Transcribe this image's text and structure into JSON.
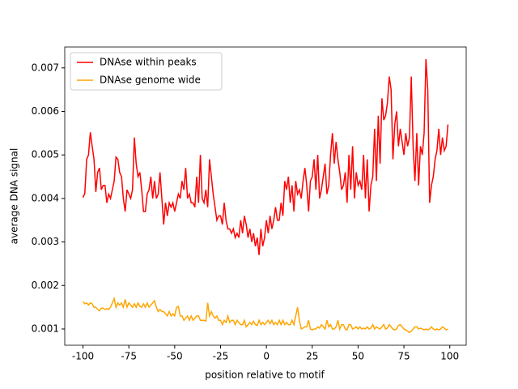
{
  "chart_data": {
    "type": "line",
    "xlabel": "position relative to motif",
    "ylabel": "average DNA signal",
    "legend": "upper left",
    "xlim": [
      -109.95,
      108.95
    ],
    "ylim": [
      0.000627,
      0.00748
    ],
    "xticks": [
      -100,
      -75,
      -50,
      -25,
      0,
      25,
      50,
      75,
      100
    ],
    "yticks": [
      0.001,
      0.002,
      0.003,
      0.004,
      0.005,
      0.006,
      0.007
    ],
    "x": [
      -100,
      -99,
      -98,
      -97,
      -96,
      -95,
      -94,
      -93,
      -92,
      -91,
      -90,
      -89,
      -88,
      -87,
      -86,
      -85,
      -84,
      -83,
      -82,
      -81,
      -80,
      -79,
      -78,
      -77,
      -76,
      -75,
      -74,
      -73,
      -72,
      -71,
      -70,
      -69,
      -68,
      -67,
      -66,
      -65,
      -64,
      -63,
      -62,
      -61,
      -60,
      -59,
      -58,
      -57,
      -56,
      -55,
      -54,
      -53,
      -52,
      -51,
      -50,
      -49,
      -48,
      -47,
      -46,
      -45,
      -44,
      -43,
      -42,
      -41,
      -40,
      -39,
      -38,
      -37,
      -36,
      -35,
      -34,
      -33,
      -32,
      -31,
      -30,
      -29,
      -28,
      -27,
      -26,
      -25,
      -24,
      -23,
      -22,
      -21,
      -20,
      -19,
      -18,
      -17,
      -16,
      -15,
      -14,
      -13,
      -12,
      -11,
      -10,
      -9,
      -8,
      -7,
      -6,
      -5,
      -4,
      -3,
      -2,
      -1,
      0,
      1,
      2,
      3,
      4,
      5,
      6,
      7,
      8,
      9,
      10,
      11,
      12,
      13,
      14,
      15,
      16,
      17,
      18,
      19,
      20,
      21,
      22,
      23,
      24,
      25,
      26,
      27,
      28,
      29,
      30,
      31,
      32,
      33,
      34,
      35,
      36,
      37,
      38,
      39,
      40,
      41,
      42,
      43,
      44,
      45,
      46,
      47,
      48,
      49,
      50,
      51,
      52,
      53,
      54,
      55,
      56,
      57,
      58,
      59,
      60,
      61,
      62,
      63,
      64,
      65,
      66,
      67,
      68,
      69,
      70,
      71,
      72,
      73,
      74,
      75,
      76,
      77,
      78,
      79,
      80,
      81,
      82,
      83,
      84,
      85,
      86,
      87,
      88,
      89,
      90,
      91,
      92,
      93,
      94,
      95,
      96,
      97,
      98,
      99
    ],
    "series": [
      {
        "name": "DNAse within peaks",
        "color": "#ff0000",
        "values": [
          0.00402,
          0.00412,
          0.0049,
          0.005,
          0.00552,
          0.0052,
          0.0049,
          0.00415,
          0.0046,
          0.0047,
          0.0042,
          0.0043,
          0.0043,
          0.0039,
          0.0041,
          0.004,
          0.0042,
          0.0044,
          0.00495,
          0.0049,
          0.0046,
          0.0045,
          0.004,
          0.0037,
          0.0042,
          0.0041,
          0.004,
          0.0042,
          0.0054,
          0.0048,
          0.0045,
          0.0046,
          0.0042,
          0.0037,
          0.0037,
          0.0041,
          0.0042,
          0.0045,
          0.004,
          0.0044,
          0.004,
          0.0041,
          0.0046,
          0.004,
          0.0034,
          0.0039,
          0.0036,
          0.0039,
          0.0038,
          0.0039,
          0.0037,
          0.0039,
          0.0041,
          0.004,
          0.0044,
          0.0042,
          0.0047,
          0.004,
          0.0041,
          0.0039,
          0.0039,
          0.0038,
          0.0045,
          0.0039,
          0.005,
          0.004,
          0.0039,
          0.0042,
          0.0038,
          0.0049,
          0.0045,
          0.0041,
          0.0038,
          0.0035,
          0.0036,
          0.0036,
          0.0034,
          0.0039,
          0.0035,
          0.0033,
          0.0033,
          0.0032,
          0.0033,
          0.0031,
          0.0032,
          0.0031,
          0.0035,
          0.0032,
          0.0036,
          0.0034,
          0.0031,
          0.0033,
          0.003,
          0.0032,
          0.0029,
          0.0031,
          0.0027,
          0.0033,
          0.0029,
          0.0031,
          0.0035,
          0.0032,
          0.0036,
          0.0033,
          0.0035,
          0.0038,
          0.0035,
          0.0035,
          0.0039,
          0.0036,
          0.0044,
          0.0042,
          0.0045,
          0.0039,
          0.0043,
          0.0037,
          0.0044,
          0.0041,
          0.0042,
          0.004,
          0.0044,
          0.0047,
          0.0043,
          0.0037,
          0.0044,
          0.0045,
          0.0049,
          0.0042,
          0.005,
          0.004,
          0.0042,
          0.0045,
          0.0048,
          0.0041,
          0.0043,
          0.005,
          0.0055,
          0.0048,
          0.0053,
          0.0049,
          0.0046,
          0.0042,
          0.0043,
          0.0046,
          0.0039,
          0.005,
          0.0042,
          0.0052,
          0.004,
          0.0046,
          0.0043,
          0.0044,
          0.0042,
          0.005,
          0.004,
          0.0049,
          0.0037,
          0.0043,
          0.0045,
          0.0056,
          0.0044,
          0.0059,
          0.0048,
          0.0063,
          0.0058,
          0.0059,
          0.0062,
          0.0068,
          0.0065,
          0.0049,
          0.0057,
          0.006,
          0.0052,
          0.0056,
          0.0053,
          0.005,
          0.0055,
          0.0052,
          0.0054,
          0.0068,
          0.0052,
          0.0044,
          0.0055,
          0.0043,
          0.0052,
          0.005,
          0.0055,
          0.0072,
          0.0065,
          0.0039,
          0.0043,
          0.0045,
          0.0049,
          0.0051,
          0.0056,
          0.005,
          0.0054,
          0.0051,
          0.0052,
          0.0057
        ]
      },
      {
        "name": "DNAse genome wide",
        "color": "#ffa500",
        "values": [
          0.00163,
          0.00158,
          0.0016,
          0.00155,
          0.0016,
          0.00158,
          0.0015,
          0.0015,
          0.00145,
          0.00142,
          0.00148,
          0.00148,
          0.00145,
          0.00147,
          0.00145,
          0.0015,
          0.0016,
          0.0017,
          0.0015,
          0.0016,
          0.00155,
          0.0016,
          0.0015,
          0.00168,
          0.0015,
          0.0016,
          0.00155,
          0.0015,
          0.00158,
          0.0015,
          0.0016,
          0.00152,
          0.0015,
          0.00158,
          0.0015,
          0.0016,
          0.0015,
          0.00155,
          0.0016,
          0.00165,
          0.0015,
          0.0014,
          0.00145,
          0.0014,
          0.0014,
          0.00135,
          0.0013,
          0.0014,
          0.0013,
          0.00135,
          0.0013,
          0.0015,
          0.00152,
          0.0013,
          0.0013,
          0.0012,
          0.00125,
          0.0013,
          0.0012,
          0.0013,
          0.0012,
          0.00125,
          0.0013,
          0.0013,
          0.0012,
          0.0012,
          0.0012,
          0.00118,
          0.0016,
          0.0013,
          0.0014,
          0.0013,
          0.00125,
          0.0013,
          0.0012,
          0.0012,
          0.0011,
          0.0012,
          0.00115,
          0.0013,
          0.00115,
          0.0012,
          0.0012,
          0.0011,
          0.0012,
          0.00115,
          0.0011,
          0.0011,
          0.0012,
          0.00105,
          0.0011,
          0.00115,
          0.0011,
          0.00118,
          0.0011,
          0.00108,
          0.0012,
          0.0011,
          0.00115,
          0.0011,
          0.00115,
          0.0012,
          0.00112,
          0.0012,
          0.0011,
          0.00115,
          0.0011,
          0.0012,
          0.0011,
          0.0012,
          0.0011,
          0.00115,
          0.0011,
          0.0011,
          0.0012,
          0.0011,
          0.0013,
          0.0015,
          0.0012,
          0.001,
          0.00102,
          0.00105,
          0.00105,
          0.0012,
          0.001,
          0.00098,
          0.001,
          0.001,
          0.00105,
          0.00102,
          0.0011,
          0.00105,
          0.001,
          0.0012,
          0.00105,
          0.0011,
          0.001,
          0.001,
          0.00105,
          0.0012,
          0.001,
          0.0011,
          0.0011,
          0.001,
          0.00098,
          0.0011,
          0.0011,
          0.001,
          0.00102,
          0.00105,
          0.001,
          0.00105,
          0.001,
          0.00102,
          0.001,
          0.00105,
          0.001,
          0.00102,
          0.0011,
          0.001,
          0.00105,
          0.00102,
          0.001,
          0.00105,
          0.0011,
          0.001,
          0.00102,
          0.0011,
          0.00105,
          0.001,
          0.00098,
          0.001,
          0.00108,
          0.0011,
          0.00105,
          0.001,
          0.00098,
          0.00095,
          0.00092,
          0.00095,
          0.001,
          0.00105,
          0.00105,
          0.001,
          0.00102,
          0.001,
          0.00098,
          0.001,
          0.00098,
          0.001,
          0.00105,
          0.001,
          0.00098,
          0.001,
          0.00098,
          0.001,
          0.00105,
          0.00102,
          0.00098,
          0.001
        ]
      }
    ]
  }
}
